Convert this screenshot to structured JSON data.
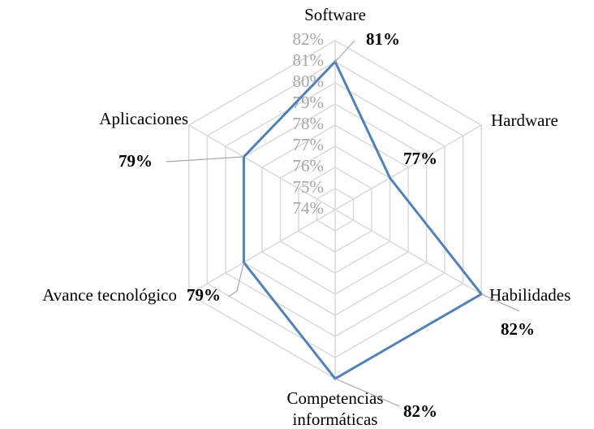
{
  "chart_data": {
    "type": "radar",
    "categories": [
      "Software",
      "Hardware",
      "Habilidades",
      "Competencias informáticas",
      "Avance tecnológico",
      "Aplicaciones"
    ],
    "series": [
      {
        "color": "#4f81bd",
        "values": [
          81,
          77,
          82,
          82,
          79,
          79
        ],
        "value_labels": [
          "81%",
          "77%",
          "82%",
          "82%",
          "79%",
          "79%"
        ]
      }
    ],
    "ylim": [
      74,
      82
    ],
    "yticks": [
      {
        "value": 74,
        "label": "74%"
      },
      {
        "value": 75,
        "label": "75%"
      },
      {
        "value": 76,
        "label": "76%"
      },
      {
        "value": 77,
        "label": "77%"
      },
      {
        "value": 78,
        "label": "78%"
      },
      {
        "value": 79,
        "label": "79%"
      },
      {
        "value": 80,
        "label": "80%"
      },
      {
        "value": 81,
        "label": "81%"
      },
      {
        "value": 82,
        "label": "82%"
      }
    ],
    "grid": true
  }
}
